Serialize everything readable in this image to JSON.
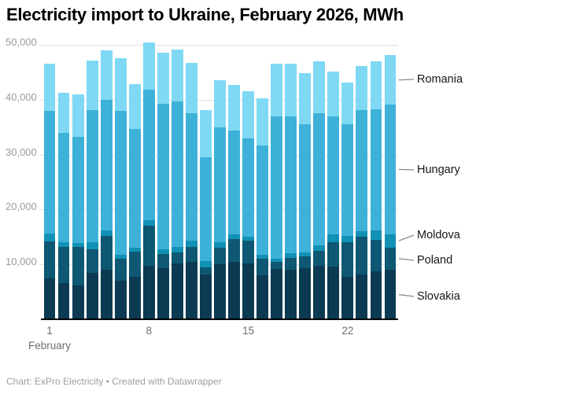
{
  "header": {
    "title": "Electricity import to Ukraine, February 2026, MWh"
  },
  "footer": {
    "text": "Chart: ExPro Electricity • Created with Datawrapper"
  },
  "axes": {
    "y_ticks": [
      {
        "value": 50000,
        "label": "50,000"
      },
      {
        "value": 40000,
        "label": "40,000"
      },
      {
        "value": 30000,
        "label": "30,000"
      },
      {
        "value": 20000,
        "label": "20,000"
      },
      {
        "value": 10000,
        "label": "10,000"
      }
    ],
    "x_ticks": [
      {
        "day": 1,
        "label": "1"
      },
      {
        "day": 8,
        "label": "8"
      },
      {
        "day": 15,
        "label": "15"
      },
      {
        "day": 22,
        "label": "22"
      }
    ],
    "month_label": "February"
  },
  "legend": {
    "position": "right",
    "entries": [
      {
        "label": "Romania"
      },
      {
        "label": "Hungary"
      },
      {
        "label": "Moldova"
      },
      {
        "label": "Poland"
      },
      {
        "label": "Slovakia"
      }
    ]
  },
  "chart_data": {
    "type": "bar",
    "stacked": true,
    "title": "Electricity import to Ukraine, February 2026, MWh",
    "xlabel": "February",
    "ylabel": "MWh",
    "ylim": [
      0,
      50000
    ],
    "grid": true,
    "legend_position": "right",
    "x": [
      1,
      2,
      3,
      4,
      5,
      6,
      7,
      8,
      9,
      10,
      11,
      12,
      13,
      14,
      15,
      16,
      17,
      18,
      19,
      20,
      21,
      22,
      23,
      24,
      25
    ],
    "series": [
      {
        "name": "Slovakia",
        "color": "#0b3a52",
        "values": [
          7400,
          6600,
          6100,
          8500,
          9000,
          7000,
          7800,
          9800,
          9300,
          10100,
          10500,
          8100,
          10000,
          10500,
          10100,
          8000,
          9200,
          9000,
          9300,
          9700,
          9600,
          7800,
          8100,
          8800,
          9000
        ]
      },
      {
        "name": "Poland",
        "color": "#0e5873",
        "values": [
          6800,
          6600,
          7100,
          4300,
          6200,
          4100,
          4500,
          7200,
          2600,
          2100,
          2700,
          1400,
          3000,
          4100,
          4200,
          3000,
          1200,
          2200,
          2100,
          2800,
          4400,
          6200,
          6900,
          5600,
          4100
        ]
      },
      {
        "name": "Moldova",
        "color": "#1191b5",
        "values": [
          1400,
          800,
          700,
          1300,
          1000,
          700,
          800,
          1100,
          900,
          1000,
          1100,
          1100,
          1000,
          800,
          800,
          800,
          600,
          800,
          800,
          1000,
          1400,
          1200,
          1100,
          1800,
          2400
        ]
      },
      {
        "name": "Hungary",
        "color": "#3eb1d8",
        "values": [
          22400,
          20000,
          19300,
          24000,
          23800,
          26100,
          21600,
          23700,
          26400,
          26500,
          23200,
          18900,
          20900,
          19000,
          17900,
          19800,
          26000,
          25000,
          23300,
          24000,
          21500,
          20300,
          22000,
          22100,
          23600
        ]
      },
      {
        "name": "Romania",
        "color": "#7fd9f4",
        "values": [
          8600,
          7200,
          7800,
          9000,
          9000,
          9700,
          8100,
          8700,
          9400,
          9500,
          9200,
          8600,
          8600,
          8300,
          8600,
          8600,
          9600,
          9600,
          9300,
          9500,
          8300,
          7600,
          8100,
          8700,
          9000
        ]
      }
    ]
  }
}
